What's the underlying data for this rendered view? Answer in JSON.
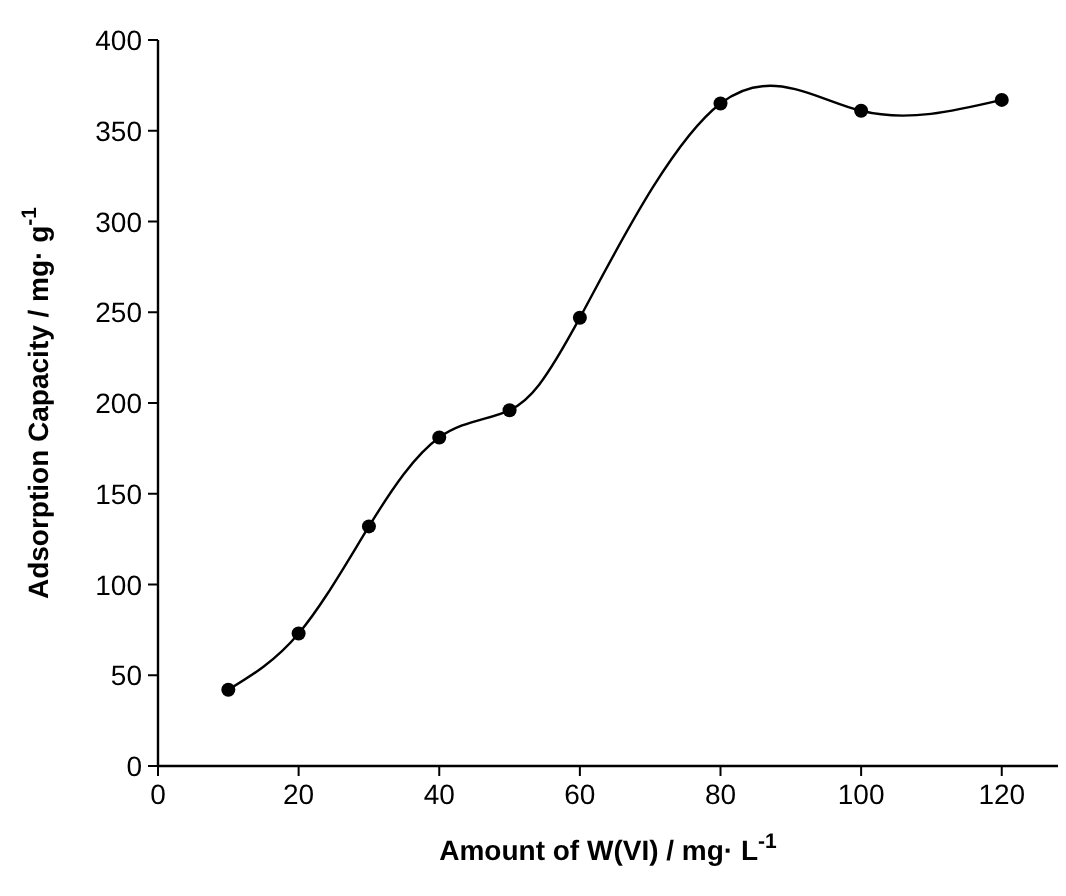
{
  "chart_data": {
    "type": "line",
    "xlabel": "Amount of W(VI) / mg· L$^{-1}$",
    "ylabel": "Adsorption Capacity / mg· g$^{-1}$",
    "x": [
      10,
      20,
      30,
      40,
      50,
      60,
      80,
      100,
      120
    ],
    "series": [
      {
        "color": "#000000",
        "values": [
          42,
          73,
          132,
          181,
          196,
          247,
          365,
          361,
          367
        ]
      }
    ],
    "xlim": [
      0,
      128
    ],
    "xticks": [
      0,
      20,
      40,
      60,
      80,
      100,
      120
    ],
    "ylim": [
      0,
      400
    ],
    "yticks": [
      0,
      50,
      100,
      150,
      200,
      250,
      300,
      350,
      400
    ],
    "marker": "circle",
    "line_style": "solid"
  }
}
